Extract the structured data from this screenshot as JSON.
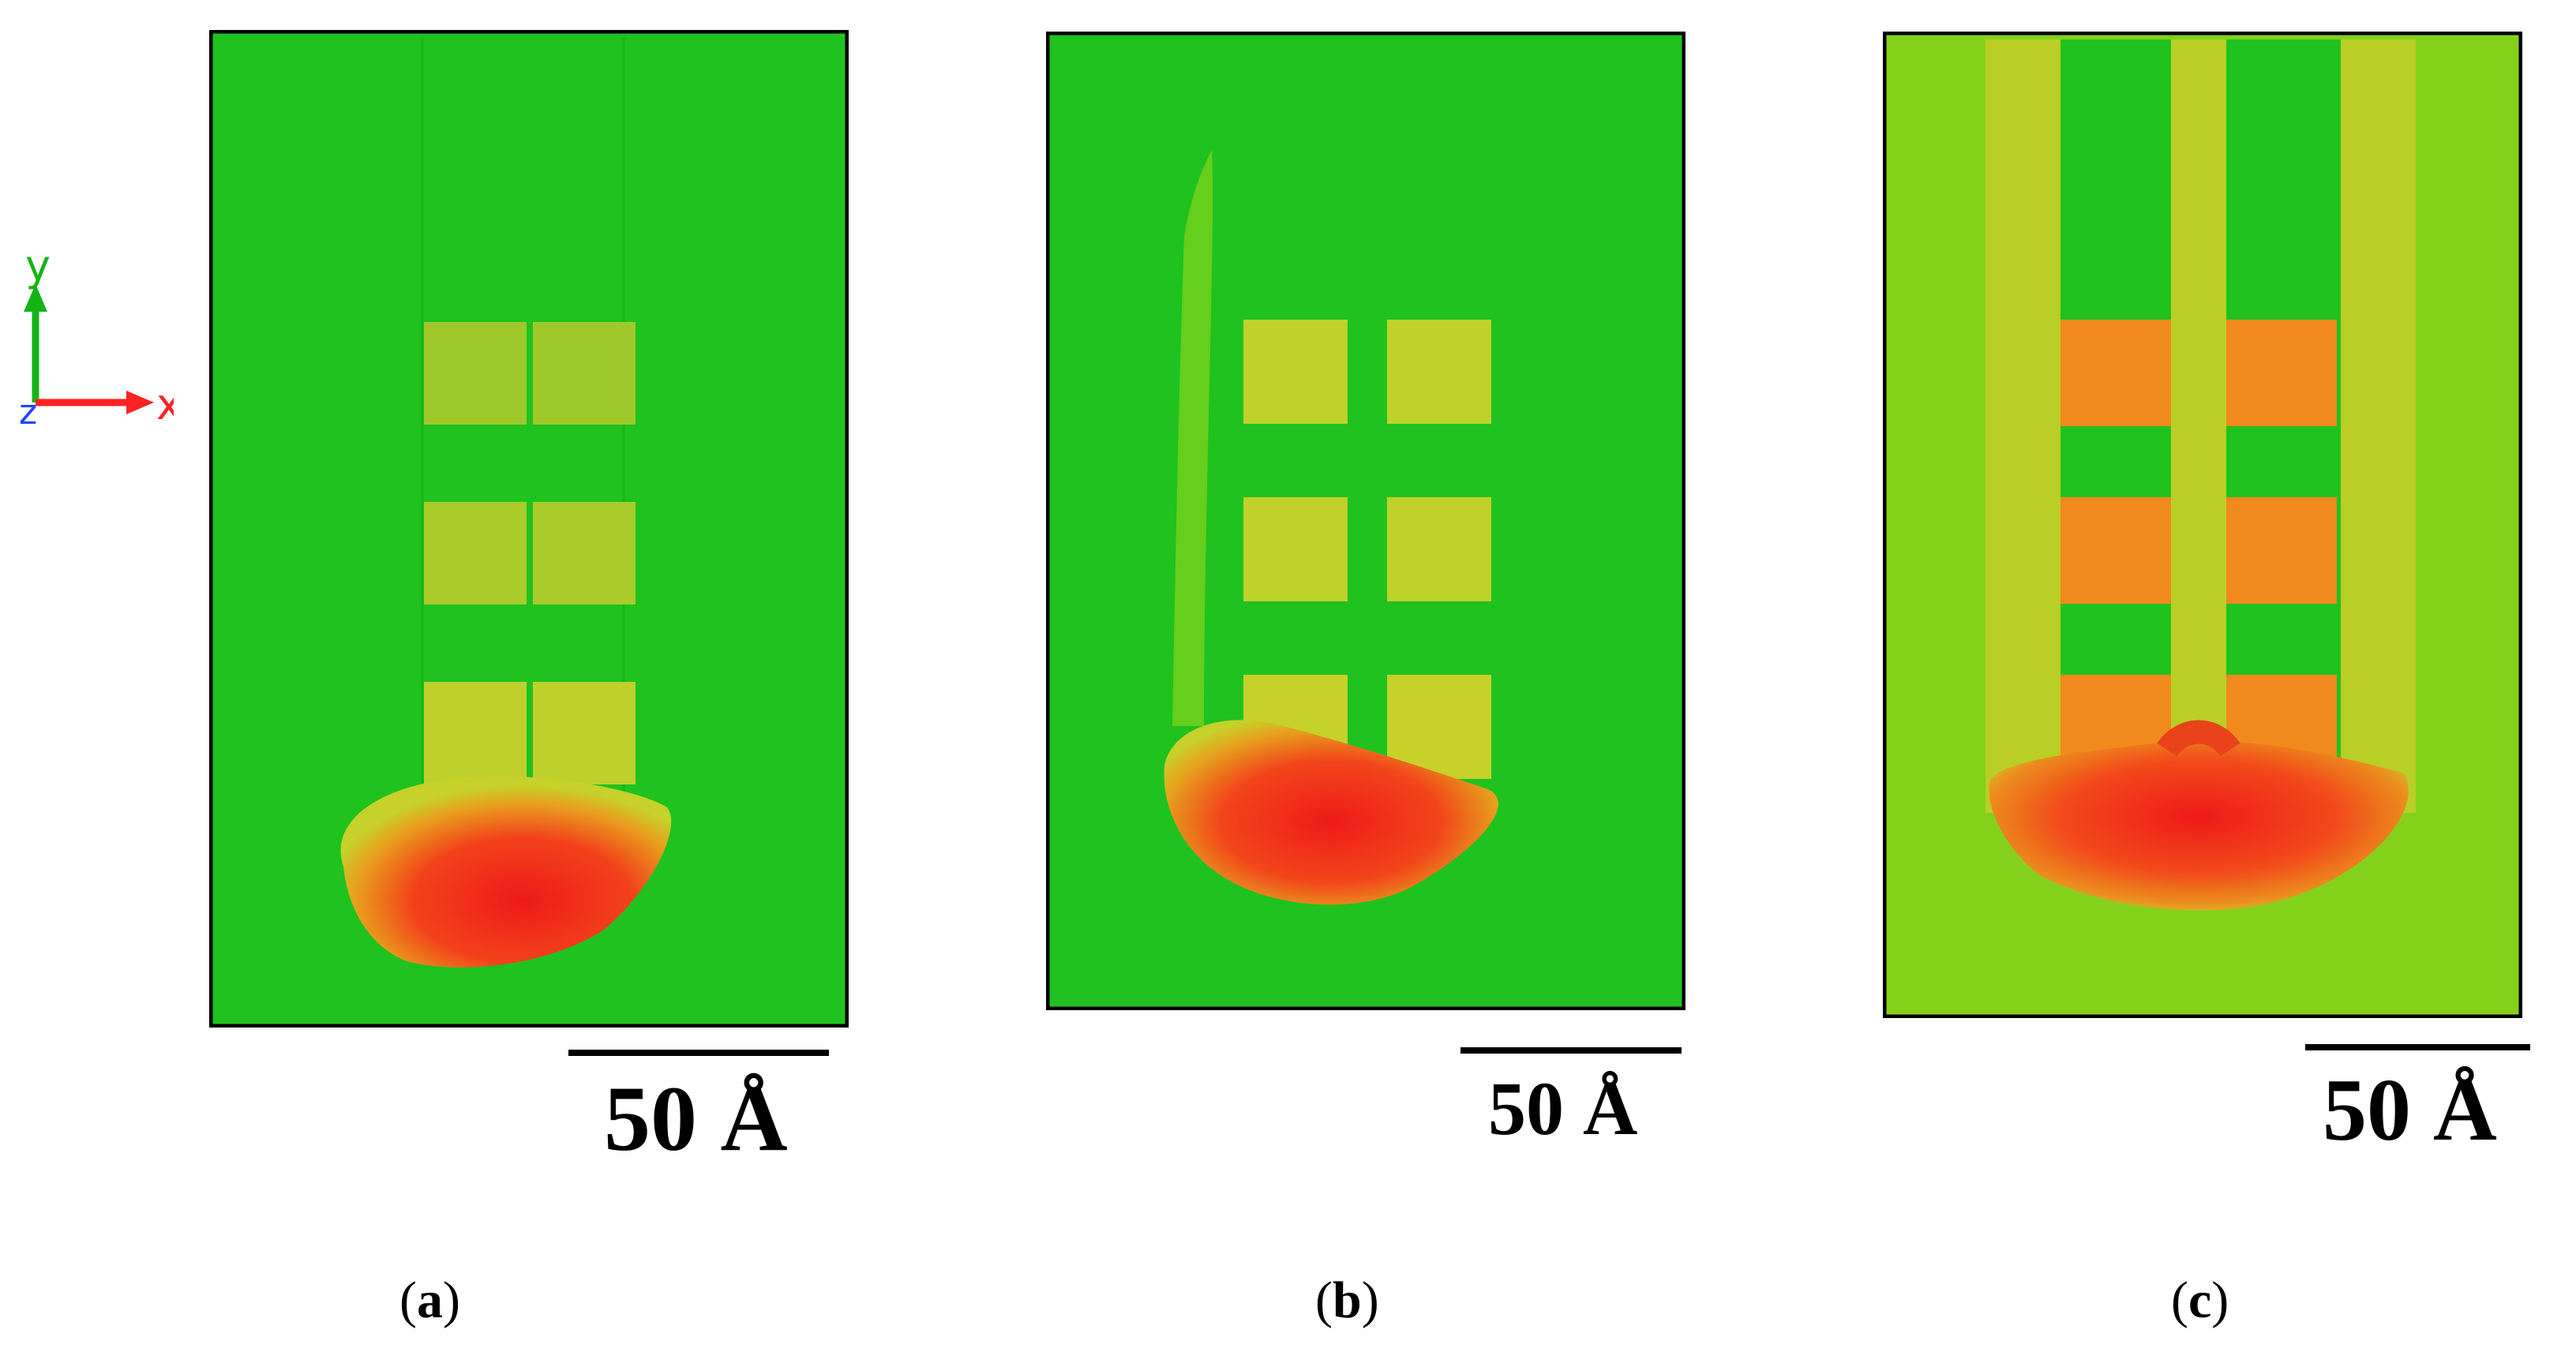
{
  "axes": {
    "x_label": "x",
    "y_label": "y",
    "z_label": "z"
  },
  "panels": [
    {
      "id": "a",
      "caption_letter": "a",
      "scale_label": "50 Å"
    },
    {
      "id": "b",
      "caption_letter": "b",
      "scale_label": "50 Å"
    },
    {
      "id": "c",
      "caption_letter": "c",
      "scale_label": "50 Å"
    }
  ],
  "colors": {
    "substrate_green": "#1fc21f",
    "substrate_light": "#7fd11c",
    "cell_yellow": "#b4cf27",
    "cell_orange": "#f08a1c",
    "hot_red": "#ee1a1a",
    "axis_x": "#ff2222",
    "axis_y": "#14b414",
    "axis_z": "#2244ff"
  }
}
